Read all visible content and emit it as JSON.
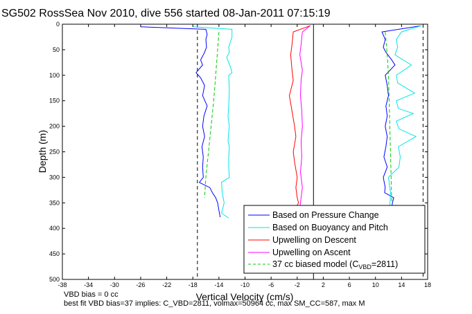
{
  "chart_data": {
    "type": "line",
    "title": "SG502 RossSea Nov 2010, dive 556 started 08-Jan-2011 07:15:19",
    "xlabel": "Vertical Velocity (cm/s)",
    "ylabel": "Depth (m)",
    "xlim": [
      -38,
      18
    ],
    "ylim": [
      500,
      0
    ],
    "y_reversed": true,
    "x_ticks": [
      -38,
      -34,
      -30,
      -26,
      -22,
      -18,
      -14,
      -10,
      -6,
      -2,
      2,
      6,
      10,
      14,
      18
    ],
    "y_ticks": [
      0,
      50,
      100,
      150,
      200,
      250,
      300,
      350,
      400,
      450,
      500
    ],
    "grid": false,
    "legend_position": "bottom-right",
    "series": [
      {
        "name": "Based on Pressure Change",
        "color": "#0000ff",
        "style": "solid",
        "profiles": [
          {
            "x": [
              -26,
              -16,
              -15.8,
              -16,
              -15.9,
              -16.2,
              -16.8,
              -16.5,
              -17.5,
              -16.8,
              -16.2,
              -16.5,
              -15.8,
              -16.3,
              -16.5,
              -16.2,
              -16.6,
              -16.4,
              -16.5,
              -16.4,
              -17,
              -15.4,
              -15,
              -14.5,
              -14.2,
              -14.0,
              -13.8
            ],
            "y": [
              5,
              10,
              20,
              30,
              45,
              55,
              70,
              80,
              95,
              105,
              120,
              140,
              160,
              180,
              200,
              220,
              240,
              260,
              280,
              300,
              310,
              320,
              330,
              340,
              350,
              365,
              378
            ]
          },
          {
            "x": [
              17,
              11,
              11.5,
              11.2,
              11.6,
              12.5,
              13,
              11.5,
              11.8,
              12,
              11.6,
              11.8,
              11.5,
              11.8,
              11.6,
              11.3,
              11.8,
              11.2,
              11.5,
              11.4,
              12.8,
              12.6,
              12.5
            ],
            "y": [
              3,
              15,
              30,
              45,
              55,
              70,
              80,
              100,
              120,
              140,
              160,
              180,
              200,
              220,
              240,
              260,
              280,
              300,
              320,
              330,
              340,
              350,
              360
            ]
          }
        ]
      },
      {
        "name": "Based on Buoyancy and Pitch",
        "color": "#00e5e5",
        "style": "solid",
        "profiles": [
          {
            "x": [
              -18,
              -12,
              -12,
              -12.5,
              -12.4,
              -12.8,
              -12.2,
              -12,
              -12.5,
              -12.4,
              -12.5,
              -12.6,
              -12.4,
              -12.5,
              -12.6,
              -12.4,
              -12.5,
              -12.5,
              -12.4,
              -13.6,
              -13.5,
              -13.2,
              -13.6,
              -12.5
            ],
            "y": [
              5,
              10,
              25,
              45,
              55,
              65,
              85,
              95,
              100,
              130,
              160,
              180,
              200,
              210,
              230,
              240,
              260,
              280,
              300,
              310,
              330,
              350,
              370,
              380
            ]
          },
          {
            "x": [
              17,
              14,
              13.2,
              13.4,
              13,
              15.5,
              13.2,
              13.4,
              16,
              13.2,
              13.5,
              15.8,
              13.2,
              13.6,
              16.2,
              13.5,
              13.8,
              13.6,
              12,
              12.3,
              12.2
            ],
            "y": [
              3,
              15,
              30,
              45,
              60,
              80,
              100,
              115,
              135,
              150,
              165,
              175,
              190,
              205,
              220,
              240,
              260,
              280,
              300,
              330,
              360
            ]
          }
        ]
      },
      {
        "name": "Upwelling on Descent",
        "color": "#ff0000",
        "style": "solid",
        "profiles": [
          {
            "x": [
              0,
              -2.6,
              -2.8,
              -3,
              -2.8,
              -2.6,
              -3.2,
              -2.8,
              -2.4,
              -2.2,
              -2.6,
              -2.4,
              -2,
              -2.2,
              -2,
              -1.8,
              -2
            ],
            "y": [
              3,
              15,
              40,
              60,
              90,
              110,
              140,
              170,
              200,
              220,
              250,
              270,
              300,
              320,
              340,
              350,
              355
            ]
          }
        ]
      },
      {
        "name": "Upwelling on Ascent",
        "color": "#ff00ff",
        "style": "solid",
        "profiles": [
          {
            "x": [
              0,
              -1.2,
              -1.4,
              -1.6,
              -1.2,
              -1.4,
              -1.5,
              -1.3,
              -1.2,
              -1.4,
              -1.3,
              -1.5,
              -1.2,
              -1.4,
              -1.6
            ],
            "y": [
              3,
              15,
              40,
              60,
              90,
              110,
              140,
              170,
              200,
              230,
              260,
              290,
              320,
              340,
              360
            ]
          }
        ]
      },
      {
        "name": "37 cc biased model (CVBD=2811)",
        "color": "#00cc00",
        "style": "dashed",
        "profiles": [
          {
            "x": [
              -14,
              -14.2,
              -14.5,
              -14.8,
              -15.2,
              -15.6,
              -16,
              -16.2
            ],
            "y": [
              15,
              50,
              100,
              150,
              200,
              250,
              300,
              340
            ]
          },
          {
            "x": [
              11.5,
              11.8,
              12,
              12.1,
              12.2,
              12.3,
              12.4,
              12.5
            ],
            "y": [
              15,
              60,
              100,
              150,
              200,
              250,
              300,
              350
            ]
          }
        ]
      }
    ],
    "reference_lines": [
      {
        "x": -17.3,
        "color": "#000000",
        "style": "dashed"
      },
      {
        "x": 0.5,
        "color": "#000000",
        "style": "solid"
      },
      {
        "x": 17.3,
        "color": "#000000",
        "style": "dashed"
      }
    ]
  },
  "legend_labels": {
    "pressure": "Based on Pressure Change",
    "buoyancy": "Based on Buoyancy and Pitch",
    "descent": "Upwelling on Descent",
    "ascent": "Upwelling on Ascent",
    "model_prefix": "37 cc biased model (C",
    "model_sub": "VBD",
    "model_suffix": "=2811)"
  },
  "notes": {
    "vbd_bias": "VBD bias = 0 cc",
    "best_fit": "best fit VBD bias=37 implies: C_VBD=2811, volmax=50964 cc, max SM_CC=587, max M"
  }
}
